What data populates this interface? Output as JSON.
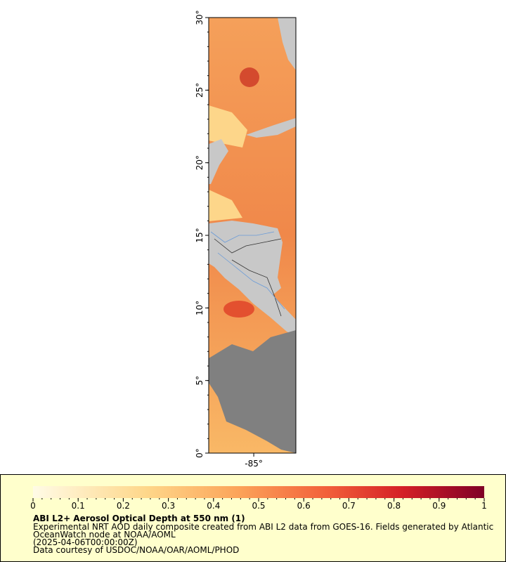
{
  "map": {
    "ylim": [
      0,
      30
    ],
    "yticks": [
      {
        "value": 0,
        "label": "0°"
      },
      {
        "value": 5,
        "label": "5°"
      },
      {
        "value": 10,
        "label": "10°"
      },
      {
        "value": 15,
        "label": "15°"
      },
      {
        "value": 20,
        "label": "20°"
      },
      {
        "value": 25,
        "label": "25°"
      },
      {
        "value": 30,
        "label": "30°"
      }
    ],
    "xlim": [
      -88.1,
      -82.1
    ],
    "xticks": [
      {
        "value": -85,
        "label": "-85°"
      }
    ]
  },
  "colorbar": {
    "range": [
      0,
      1
    ],
    "ticks": [
      0,
      0.1,
      0.2,
      0.3,
      0.4,
      0.5,
      0.6,
      0.7,
      0.8,
      0.9,
      1
    ]
  },
  "legend": {
    "title": "ABI L2+ Aerosol Optical Depth at 550 nm (1)",
    "lines": [
      "Experimental NRT AOD daily composite created from ABI L2 data from GOES-16. Fields generated by Atlantic",
      "OceanWatch node at NOAA/AOML",
      "(2025-04-06T00:00:00Z)",
      "Data courtesy of USDOC/NOAA/OAR/AOML/PHOD"
    ]
  }
}
